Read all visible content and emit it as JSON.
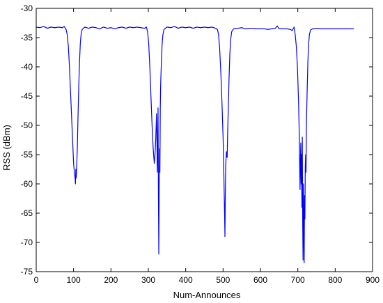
{
  "chart_data": {
    "type": "line",
    "title": "",
    "xlabel": "Num-Announces",
    "ylabel": "RSS (dBm)",
    "xlim": [
      0,
      900
    ],
    "ylim": [
      -75,
      -30
    ],
    "xticks": [
      0,
      100,
      200,
      300,
      400,
      500,
      600,
      700,
      800,
      900
    ],
    "yticks": [
      -30,
      -35,
      -40,
      -45,
      -50,
      -55,
      -60,
      -65,
      -70,
      -75
    ],
    "grid": false,
    "line_color": "#0000ff",
    "series": [
      {
        "values_xy": [
          [
            0,
            -33.2
          ],
          [
            10,
            -33.3
          ],
          [
            20,
            -33.1
          ],
          [
            30,
            -33.4
          ],
          [
            40,
            -33.2
          ],
          [
            50,
            -33.3
          ],
          [
            60,
            -33.2
          ],
          [
            70,
            -33.3
          ],
          [
            75,
            -33.1
          ],
          [
            80,
            -33.6
          ],
          [
            83,
            -34.5
          ],
          [
            86,
            -36.5
          ],
          [
            89,
            -40
          ],
          [
            92,
            -44.5
          ],
          [
            95,
            -49
          ],
          [
            98,
            -53.5
          ],
          [
            100,
            -56.5
          ],
          [
            102,
            -58
          ],
          [
            104,
            -59
          ],
          [
            105,
            -60
          ],
          [
            106,
            -57.5
          ],
          [
            107,
            -59
          ],
          [
            108,
            -57.5
          ],
          [
            110,
            -54
          ],
          [
            112,
            -48
          ],
          [
            114,
            -43
          ],
          [
            116,
            -39
          ],
          [
            118,
            -36
          ],
          [
            120,
            -34.5
          ],
          [
            123,
            -33.6
          ],
          [
            130,
            -33.2
          ],
          [
            140,
            -33.4
          ],
          [
            150,
            -33.2
          ],
          [
            160,
            -33.3
          ],
          [
            170,
            -33.5
          ],
          [
            180,
            -33.2
          ],
          [
            190,
            -33.4
          ],
          [
            200,
            -33.3
          ],
          [
            210,
            -33.5
          ],
          [
            220,
            -33.3
          ],
          [
            230,
            -33.2
          ],
          [
            240,
            -33.4
          ],
          [
            250,
            -33.2
          ],
          [
            260,
            -33.3
          ],
          [
            270,
            -33.2
          ],
          [
            280,
            -33.3
          ],
          [
            290,
            -33.4
          ],
          [
            295,
            -33.2
          ],
          [
            298,
            -34
          ],
          [
            301,
            -36
          ],
          [
            304,
            -40
          ],
          [
            307,
            -45
          ],
          [
            310,
            -50
          ],
          [
            313,
            -54
          ],
          [
            316,
            -56.5
          ],
          [
            318,
            -55
          ],
          [
            320,
            -52
          ],
          [
            322,
            -48
          ],
          [
            323,
            -52
          ],
          [
            324,
            -58
          ],
          [
            325,
            -55
          ],
          [
            326,
            -47
          ],
          [
            327,
            -62
          ],
          [
            328,
            -72
          ],
          [
            329,
            -60
          ],
          [
            330,
            -54
          ],
          [
            331,
            -58
          ],
          [
            332,
            -47
          ],
          [
            333,
            -43
          ],
          [
            335,
            -39
          ],
          [
            337,
            -36
          ],
          [
            339,
            -34.5
          ],
          [
            342,
            -33.6
          ],
          [
            350,
            -33.2
          ],
          [
            360,
            -33.3
          ],
          [
            370,
            -33.1
          ],
          [
            380,
            -33.4
          ],
          [
            390,
            -33.2
          ],
          [
            400,
            -33.3
          ],
          [
            410,
            -33.2
          ],
          [
            420,
            -33.4
          ],
          [
            430,
            -33.2
          ],
          [
            440,
            -33.3
          ],
          [
            450,
            -33.2
          ],
          [
            460,
            -33.3
          ],
          [
            470,
            -33.2
          ],
          [
            480,
            -33.4
          ],
          [
            485,
            -33.6
          ],
          [
            488,
            -34.5
          ],
          [
            491,
            -37
          ],
          [
            494,
            -41
          ],
          [
            497,
            -46
          ],
          [
            500,
            -52
          ],
          [
            502,
            -58
          ],
          [
            504,
            -65
          ],
          [
            505,
            -69
          ],
          [
            506,
            -62
          ],
          [
            507,
            -57
          ],
          [
            509,
            -54.5
          ],
          [
            511,
            -55.5
          ],
          [
            512,
            -52
          ],
          [
            514,
            -47
          ],
          [
            516,
            -42
          ],
          [
            518,
            -38
          ],
          [
            520,
            -35.5
          ],
          [
            523,
            -34
          ],
          [
            528,
            -33.5
          ],
          [
            540,
            -33.4
          ],
          [
            550,
            -33.3
          ],
          [
            560,
            -33.5
          ],
          [
            570,
            -33.4
          ],
          [
            580,
            -33.4
          ],
          [
            590,
            -33.5
          ],
          [
            600,
            -33.5
          ],
          [
            610,
            -33.5
          ],
          [
            620,
            -33.6
          ],
          [
            630,
            -33.5
          ],
          [
            640,
            -33.4
          ],
          [
            645,
            -33.0
          ],
          [
            650,
            -33.5
          ],
          [
            660,
            -33.5
          ],
          [
            670,
            -33.5
          ],
          [
            680,
            -33.6
          ],
          [
            685,
            -33.8
          ],
          [
            690,
            -33.2
          ],
          [
            693,
            -34.5
          ],
          [
            696,
            -36.5
          ],
          [
            699,
            -40
          ],
          [
            702,
            -46
          ],
          [
            704,
            -52
          ],
          [
            705,
            -57
          ],
          [
            706,
            -61
          ],
          [
            707,
            -56
          ],
          [
            708,
            -53
          ],
          [
            709,
            -60
          ],
          [
            710,
            -55
          ],
          [
            711,
            -64
          ],
          [
            712,
            -52
          ],
          [
            713,
            -66
          ],
          [
            714,
            -73
          ],
          [
            715,
            -60
          ],
          [
            716,
            -68
          ],
          [
            717,
            -73.5
          ],
          [
            718,
            -62
          ],
          [
            719,
            -66
          ],
          [
            720,
            -57
          ],
          [
            721,
            -55
          ],
          [
            722,
            -58
          ],
          [
            723,
            -50
          ],
          [
            725,
            -44
          ],
          [
            727,
            -39
          ],
          [
            729,
            -36
          ],
          [
            731,
            -34.5
          ],
          [
            734,
            -33.7
          ],
          [
            740,
            -33.5
          ],
          [
            750,
            -33.4
          ],
          [
            760,
            -33.5
          ],
          [
            770,
            -33.5
          ],
          [
            780,
            -33.5
          ],
          [
            790,
            -33.5
          ],
          [
            800,
            -33.5
          ],
          [
            810,
            -33.5
          ],
          [
            820,
            -33.5
          ],
          [
            830,
            -33.5
          ],
          [
            840,
            -33.5
          ],
          [
            850,
            -33.5
          ]
        ]
      }
    ]
  }
}
